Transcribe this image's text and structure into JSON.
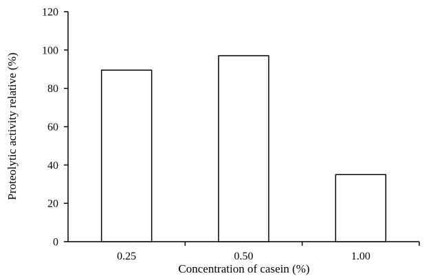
{
  "chart_data": {
    "type": "bar",
    "categories": [
      "0.25",
      "0.50",
      "1.00"
    ],
    "values": [
      89.5,
      97,
      35
    ],
    "xlabel": "Concentration of casein (%)",
    "ylabel": "Proteolytic activity relative (%)",
    "ylim": [
      0,
      120
    ],
    "yticks": [
      "0",
      "20",
      "40",
      "60",
      "80",
      "100",
      "120"
    ],
    "grid": false,
    "legend": "none",
    "bar_fill": "#ffffff",
    "bar_stroke": "#000000"
  }
}
